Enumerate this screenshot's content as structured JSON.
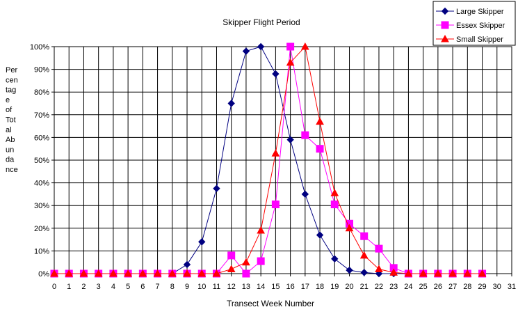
{
  "chart_data": {
    "type": "line",
    "title": "Skipper Flight Period",
    "xlabel": "Transect Week Number",
    "ylabel": "Percentage of Total Abundance",
    "ylabel_lines": [
      "Per",
      "cen",
      "tag",
      "e",
      "of",
      "Tot",
      "al",
      "Ab",
      "un",
      "da",
      "nce"
    ],
    "x": [
      0,
      1,
      2,
      3,
      4,
      5,
      6,
      7,
      8,
      9,
      10,
      11,
      12,
      13,
      14,
      15,
      16,
      17,
      18,
      19,
      20,
      21,
      22,
      23,
      24,
      25,
      26,
      27,
      28,
      29
    ],
    "x_ticks": [
      "0",
      "1",
      "2",
      "3",
      "4",
      "5",
      "6",
      "7",
      "8",
      "9",
      "10",
      "11",
      "12",
      "13",
      "14",
      "15",
      "16",
      "17",
      "18",
      "19",
      "20",
      "21",
      "22",
      "23",
      "24",
      "25",
      "26",
      "27",
      "28",
      "29",
      "30",
      "31"
    ],
    "y_ticks": [
      "0%",
      "10%",
      "20%",
      "30%",
      "40%",
      "50%",
      "60%",
      "70%",
      "80%",
      "90%",
      "100%"
    ],
    "xlim": [
      0,
      31
    ],
    "ylim": [
      0,
      100
    ],
    "grid": true,
    "legend_position": "top-right",
    "series": [
      {
        "name": "Large Skipper",
        "color": "#000080",
        "marker": "diamond",
        "values": [
          0,
          0,
          0,
          0,
          0,
          0,
          0,
          0,
          0,
          4,
          14,
          37.5,
          75,
          98,
          100,
          88,
          59,
          35,
          17,
          6.5,
          1.5,
          0.5,
          0,
          0,
          0,
          0,
          0,
          0,
          0,
          0
        ]
      },
      {
        "name": "Essex Skipper",
        "color": "#ff00ff",
        "marker": "square",
        "values": [
          0,
          0,
          0,
          0,
          0,
          0,
          0,
          0,
          0,
          0,
          0,
          0,
          8,
          0,
          5.5,
          30.5,
          100,
          61,
          55,
          30.5,
          22,
          16.5,
          11,
          2.5,
          0,
          0,
          0,
          0,
          0,
          0
        ]
      },
      {
        "name": "Small Skipper",
        "color": "#ff0000",
        "marker": "triangle",
        "values": [
          0,
          0,
          0,
          0,
          0,
          0,
          0,
          0,
          0,
          0,
          0,
          0,
          2,
          5,
          19,
          53,
          93,
          100,
          67,
          35.5,
          20,
          8,
          2,
          0.5,
          0,
          0,
          0,
          0,
          0,
          0
        ]
      }
    ]
  }
}
